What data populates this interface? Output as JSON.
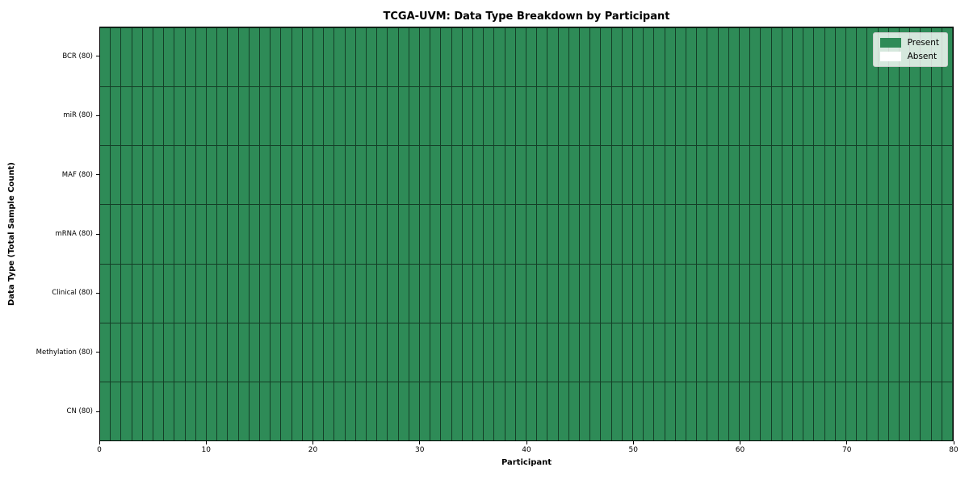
{
  "title": "TCGA-UVM: Data Type Breakdown by Participant",
  "xlabel": "Participant",
  "ylabel": "Data Type (Total Sample Count)",
  "colors": {
    "present": "#2E8B57",
    "absent": "#FFFFFF",
    "cell_edge": "rgba(0,0,0,0.55)",
    "spine": "#000000",
    "background": "#FFFFFF"
  },
  "legend": {
    "position": "upper right",
    "entries": [
      {
        "label": "Present",
        "color": "#2E8B57"
      },
      {
        "label": "Absent",
        "color": "#FFFFFF"
      }
    ]
  },
  "chart_data": {
    "type": "heatmap",
    "title": "TCGA-UVM: Data Type Breakdown by Participant",
    "xlabel": "Participant",
    "ylabel": "Data Type (Total Sample Count)",
    "xlim": [
      0,
      80
    ],
    "x_ticks": [
      0,
      10,
      20,
      30,
      40,
      50,
      60,
      70,
      80
    ],
    "n_participants": 80,
    "grid": false,
    "legend_position": "upper right",
    "legend_entries": [
      "Present",
      "Absent"
    ],
    "value_encoding": {
      "present": 1,
      "absent": 0
    },
    "rows": [
      {
        "label": "BCR (80)",
        "data_type": "BCR",
        "total_sample_count": 80,
        "present_count": 80,
        "absent_count": 0
      },
      {
        "label": "miR (80)",
        "data_type": "miR",
        "total_sample_count": 80,
        "present_count": 80,
        "absent_count": 0
      },
      {
        "label": "MAF (80)",
        "data_type": "MAF",
        "total_sample_count": 80,
        "present_count": 80,
        "absent_count": 0
      },
      {
        "label": "mRNA (80)",
        "data_type": "mRNA",
        "total_sample_count": 80,
        "present_count": 80,
        "absent_count": 0
      },
      {
        "label": "Clinical (80)",
        "data_type": "Clinical",
        "total_sample_count": 80,
        "present_count": 80,
        "absent_count": 0
      },
      {
        "label": "Methylation (80)",
        "data_type": "Methylation",
        "total_sample_count": 80,
        "present_count": 80,
        "absent_count": 0
      },
      {
        "label": "CN (80)",
        "data_type": "CN",
        "total_sample_count": 80,
        "present_count": 80,
        "absent_count": 0
      }
    ]
  }
}
